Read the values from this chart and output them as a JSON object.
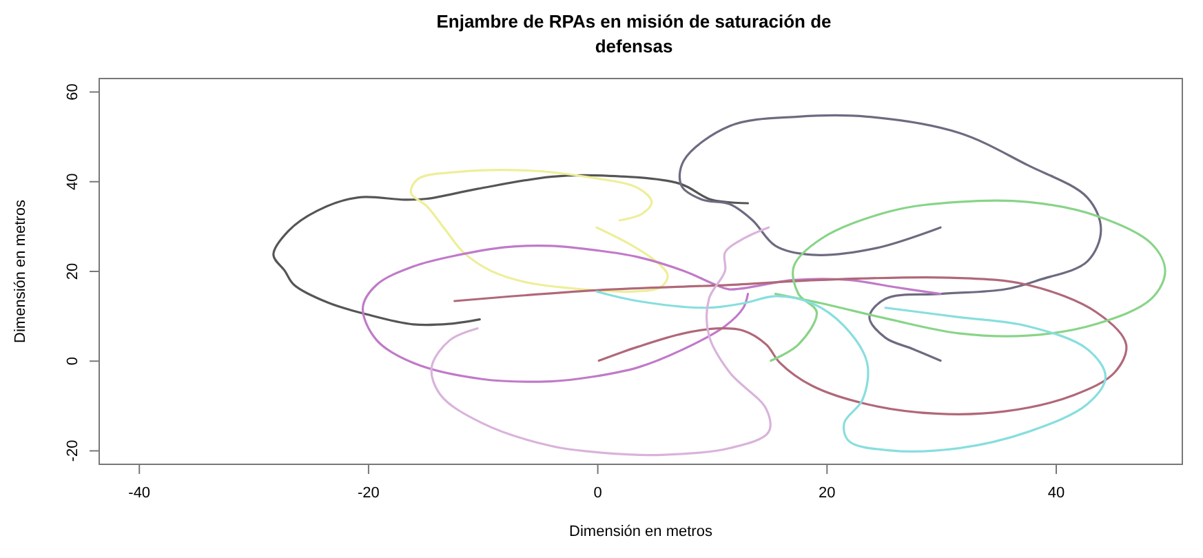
{
  "chart_data": {
    "type": "line",
    "title": "Enjambre de RPAs en misión de saturación de\ndefensas",
    "xlabel": "Dimensión en metros",
    "ylabel": "Dimensión en metros",
    "xlim": [
      -43.5,
      51
    ],
    "ylim": [
      -23,
      63
    ],
    "xticks": [
      -40,
      -20,
      0,
      20,
      40
    ],
    "yticks": [
      -20,
      0,
      20,
      40,
      60
    ],
    "marker": "none",
    "line_style": "solid",
    "series": [
      {
        "color": "#555555",
        "x": [
          -10.3,
          -13,
          -16.1,
          -20.1,
          -23.5,
          -26.5,
          -27.3,
          -28.3,
          -27,
          -24.5,
          -20.9,
          -16.9,
          -14.9,
          -10.5,
          -4.1,
          -0.1,
          7.1,
          9.9,
          13.1
        ],
        "values": [
          9.3,
          8.3,
          8.2,
          10.4,
          13,
          17,
          20.1,
          23.7,
          29,
          33.5,
          36.5,
          36,
          36.2,
          38.4,
          41.1,
          41.4,
          39.6,
          36,
          35.2
        ]
      },
      {
        "color": "#6e6a80",
        "x": [
          29.9,
          24.3,
          18.7,
          15.5,
          13.5,
          11.5,
          9.1,
          7.3,
          7.5,
          11.5,
          17.5,
          23.5,
          31.5,
          37.5,
          42.7,
          43.9,
          42.7,
          38.5,
          35.5,
          29.9,
          25.1,
          23.7,
          25.1,
          27.5,
          29.9
        ],
        "values": [
          29.8,
          25.2,
          23.7,
          25.7,
          31.4,
          35,
          36,
          39.1,
          44.7,
          52.4,
          54.5,
          54.5,
          50.9,
          43.7,
          36.5,
          29.3,
          22.2,
          18.1,
          16,
          15,
          13.9,
          9.8,
          5.2,
          2.7,
          0.1
        ]
      },
      {
        "color": "#eeee99",
        "x": [
          1.9,
          3.9,
          4.7,
          3.5,
          -0.5,
          -6.1,
          -12.1,
          -15.7,
          -16.3,
          -14.9,
          -13.3,
          -11.7,
          -9.3,
          -6.1,
          -2.1,
          2.7,
          5.5,
          6.1,
          5.1,
          2.7,
          -0.1
        ],
        "values": [
          31.4,
          32.9,
          35.5,
          38.6,
          40.9,
          42.5,
          42.2,
          40.6,
          37.5,
          34.5,
          29.3,
          24.2,
          20.1,
          17.5,
          16.2,
          15.5,
          16.5,
          19.1,
          22.2,
          26.2,
          29.8
        ]
      },
      {
        "color": "#c07ac8",
        "x": [
          13.1,
          12.7,
          11.1,
          7.5,
          3.5,
          -0.5,
          -4.1,
          -10.1,
          -16.1,
          -19.3,
          -20.5,
          -19.3,
          -16.1,
          -12.1,
          -8.1,
          -4.1,
          -0.1,
          3.5,
          7.5,
          10.3,
          11.5,
          17.1,
          21.9,
          25.9,
          29.9
        ],
        "values": [
          15,
          11.9,
          7.8,
          2.7,
          -1.4,
          -3.5,
          -4.5,
          -4,
          -0.4,
          4.7,
          11.9,
          17,
          21.1,
          23.7,
          25.4,
          25.7,
          24.7,
          23.2,
          20.1,
          17,
          16,
          18.1,
          18.1,
          16.5,
          15
        ]
      },
      {
        "color": "#b06878",
        "x": [
          -12.5,
          -0.1,
          11.5,
          19.5,
          30.7,
          37.5,
          43.5,
          46.1,
          45.1,
          41.5,
          35.5,
          29.5,
          23.5,
          18.7,
          15.9,
          14.7,
          12.7,
          10.7,
          7.5,
          3.5,
          0.1
        ],
        "values": [
          13.4,
          15.8,
          17,
          18.1,
          18.6,
          17,
          10.9,
          3.7,
          -2.5,
          -7.6,
          -11.2,
          -11.7,
          -9.6,
          -5.5,
          -0.4,
          3.7,
          6.8,
          7.3,
          6.2,
          3.2,
          0.1
        ]
      },
      {
        "color": "#88d488",
        "x": [
          15.1,
          17.5,
          19.1,
          17.5,
          17.1,
          19.5,
          25.5,
          31.5,
          37.5,
          43.5,
          48.3,
          49.5,
          48.3,
          43.5,
          37.5,
          31.5,
          25.5,
          19.5,
          15.5
        ],
        "values": [
          0.1,
          3.7,
          10.9,
          15,
          21.1,
          27.3,
          33.4,
          35.5,
          35.5,
          32.4,
          26.2,
          20.1,
          13.9,
          8.3,
          5.7,
          6.2,
          9.3,
          12.9,
          15
        ]
      },
      {
        "color": "#88dede",
        "x": [
          -0.1,
          3.5,
          9.5,
          12.7,
          15.5,
          18.7,
          21.5,
          23.5,
          23.1,
          21.5,
          21.9,
          25.5,
          31.5,
          37.5,
          42.7,
          44.3,
          42.7,
          37.5,
          31.5,
          25.1
        ],
        "values": [
          15.5,
          13.4,
          11.9,
          12.9,
          14.5,
          12.9,
          7.8,
          -0.4,
          -8.6,
          -13.8,
          -17.8,
          -19.9,
          -19.4,
          -15.8,
          -9.6,
          -3.5,
          2.7,
          7.8,
          9.8,
          11.9
        ]
      },
      {
        "color": "#d9b3da",
        "x": [
          -10.5,
          -12.9,
          -14.5,
          -13.7,
          -10.1,
          -4.1,
          0.3,
          5.5,
          11.5,
          14.9,
          14.7,
          11.5,
          9.7,
          9.7,
          11.1,
          11.1,
          12.7,
          14.9
        ],
        "values": [
          7.3,
          4.7,
          -1.4,
          -7.6,
          -13.8,
          -18.9,
          -20.4,
          -20.9,
          -19.4,
          -15.8,
          -10.7,
          -2.5,
          5.7,
          13.9,
          20.1,
          24.2,
          27.3,
          29.8
        ]
      }
    ]
  }
}
